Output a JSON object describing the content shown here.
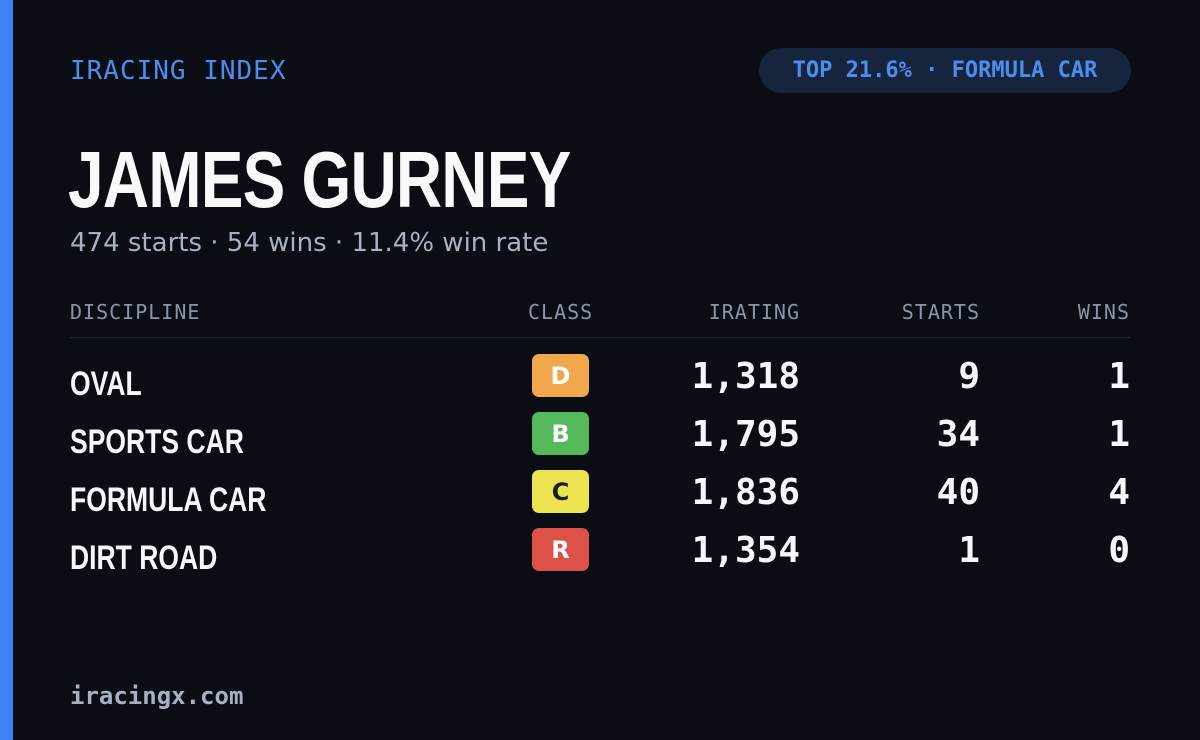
{
  "brand": "IRACING INDEX",
  "badge": "TOP 21.6% · FORMULA CAR",
  "driver": {
    "name": "JAMES GURNEY",
    "summary": "474 starts · 54 wins · 11.4% win rate"
  },
  "table": {
    "headers": {
      "discipline": "DISCIPLINE",
      "class": "CLASS",
      "irating": "IRATING",
      "starts": "STARTS",
      "wins": "WINS"
    },
    "rows": [
      {
        "discipline": "OVAL",
        "class": "D",
        "class_color": "#f0a84a",
        "class_text_color": "#ffffff",
        "irating": "1,318",
        "starts": "9",
        "wins": "1"
      },
      {
        "discipline": "SPORTS CAR",
        "class": "B",
        "class_color": "#55b85a",
        "class_text_color": "#ffffff",
        "irating": "1,795",
        "starts": "34",
        "wins": "1"
      },
      {
        "discipline": "FORMULA CAR",
        "class": "C",
        "class_color": "#ede24f",
        "class_text_color": "#1a1a1a",
        "irating": "1,836",
        "starts": "40",
        "wins": "4"
      },
      {
        "discipline": "DIRT ROAD",
        "class": "R",
        "class_color": "#dc5249",
        "class_text_color": "#ffffff",
        "irating": "1,354",
        "starts": "1",
        "wins": "0"
      }
    ]
  },
  "footer": "iracingx.com",
  "colors": {
    "accent": "#3b82f6",
    "background": "#0a0d14",
    "badge_background": "#16243d"
  }
}
